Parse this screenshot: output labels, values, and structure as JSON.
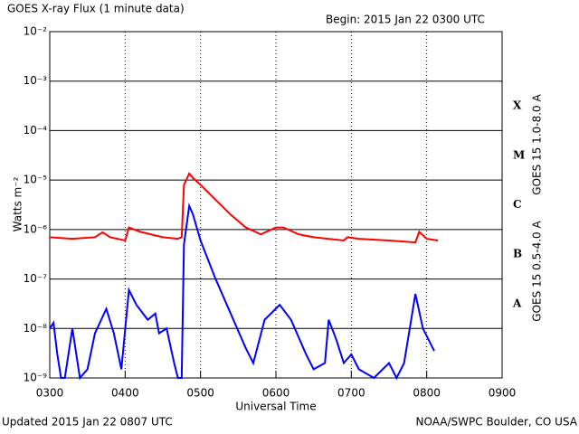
{
  "chart_data": {
    "type": "line",
    "title": "GOES X-ray Flux (1 minute data)",
    "subtitle": "Begin: 2015 Jan 22 0300 UTC",
    "x_label": "Universal Time",
    "y_label": "Watts m⁻²",
    "footer_left": "Updated 2015 Jan 22 0807 UTC",
    "footer_right": "NOAA/SWPC Boulder, CO USA",
    "log_scale": true,
    "grid": true,
    "xlim": [
      3,
      9
    ],
    "xticks": [
      {
        "value": 3,
        "label": "0300"
      },
      {
        "value": 4,
        "label": "0400"
      },
      {
        "value": 5,
        "label": "0500"
      },
      {
        "value": 6,
        "label": "0600"
      },
      {
        "value": 7,
        "label": "0700"
      },
      {
        "value": 8,
        "label": "0800"
      },
      {
        "value": 9,
        "label": "0900"
      }
    ],
    "ylim": [
      1e-09,
      0.01
    ],
    "yticks": [
      {
        "value": 1e-09,
        "label": "10⁻⁹"
      },
      {
        "value": 1e-08,
        "label": "10⁻⁸"
      },
      {
        "value": 1e-07,
        "label": "10⁻⁷"
      },
      {
        "value": 1e-06,
        "label": "10⁻⁶"
      },
      {
        "value": 1e-05,
        "label": "10⁻⁵"
      },
      {
        "value": 0.0001,
        "label": "10⁻⁴"
      },
      {
        "value": 0.001,
        "label": "10⁻³"
      },
      {
        "value": 0.01,
        "label": "10⁻²"
      }
    ],
    "flare_classes": [
      {
        "label": "A",
        "value": 1e-08
      },
      {
        "label": "B",
        "value": 1e-07
      },
      {
        "label": "C",
        "value": 1e-06
      },
      {
        "label": "M",
        "value": 1e-05
      },
      {
        "label": "X",
        "value": 0.0001
      }
    ],
    "series": [
      {
        "name": "GOES 15 1.0-8.0 A",
        "color": "#ff0000",
        "x": [
          3.0,
          3.3,
          3.6,
          3.7,
          3.8,
          4.0,
          4.05,
          4.2,
          4.5,
          4.7,
          4.75,
          4.78,
          4.85,
          4.9,
          5.0,
          5.2,
          5.4,
          5.6,
          5.8,
          6.0,
          6.1,
          6.3,
          6.5,
          6.9,
          6.95,
          7.1,
          7.5,
          7.85,
          7.9,
          8.0,
          8.15
        ],
        "values": [
          7e-07,
          6.5e-07,
          7e-07,
          8.8e-07,
          7e-07,
          6e-07,
          1.1e-06,
          9e-07,
          7e-07,
          6.5e-07,
          7e-07,
          8e-06,
          1.35e-05,
          1.1e-05,
          8e-06,
          4e-06,
          2e-06,
          1.1e-06,
          8e-07,
          1.1e-06,
          1.1e-06,
          8e-07,
          7e-07,
          6e-07,
          7e-07,
          6.5e-07,
          6e-07,
          5.5e-07,
          9e-07,
          6.5e-07,
          6e-07
        ]
      },
      {
        "name": "GOES 15 0.5-4.0 A",
        "color": "#0000ff",
        "x": [
          3.0,
          3.05,
          3.1,
          3.15,
          3.2,
          3.3,
          3.4,
          3.5,
          3.6,
          3.75,
          3.85,
          3.95,
          4.05,
          4.15,
          4.3,
          4.4,
          4.45,
          4.55,
          4.65,
          4.7,
          4.75,
          4.78,
          4.85,
          4.9,
          5.0,
          5.2,
          5.4,
          5.6,
          5.7,
          5.85,
          6.05,
          6.2,
          6.4,
          6.5,
          6.65,
          6.7,
          6.8,
          6.9,
          7.0,
          7.1,
          7.3,
          7.5,
          7.6,
          7.7,
          7.85,
          7.95,
          8.1
        ],
        "values": [
          1e-08,
          1.3e-08,
          3e-09,
          1e-09,
          1e-09,
          1e-08,
          1e-09,
          1.5e-09,
          8e-09,
          2.5e-08,
          8e-09,
          1.5e-09,
          6e-08,
          3e-08,
          1.5e-08,
          2e-08,
          8e-09,
          1e-08,
          2e-09,
          1e-09,
          1e-09,
          5e-07,
          3e-06,
          2e-06,
          6e-07,
          1e-07,
          2e-08,
          4e-09,
          2e-09,
          1.5e-08,
          3e-08,
          1.5e-08,
          3e-09,
          1.5e-09,
          2e-09,
          1.5e-08,
          6e-09,
          2e-09,
          3e-09,
          1.5e-09,
          1e-09,
          2e-09,
          1e-09,
          2e-09,
          5e-08,
          1e-08,
          3.5e-09
        ]
      }
    ]
  }
}
